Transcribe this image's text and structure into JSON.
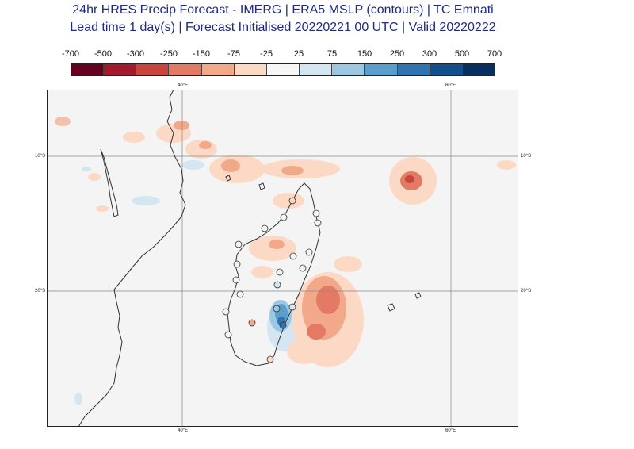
{
  "title": {
    "line1": "24hr HRES Precip Forecast - IMERG | ERA5 MSLP (contours) | TC Emnati",
    "line2": "Lead time 1 day(s) | Forecast Initialised 20220221 00 UTC | Valid 20220222"
  },
  "colorbar": {
    "labels": [
      "-700",
      "-500",
      "-300",
      "-250",
      "-150",
      "-75",
      "-25",
      "25",
      "75",
      "150",
      "250",
      "300",
      "500",
      "700"
    ],
    "colors": [
      "#67001f",
      "#a11b2d",
      "#c8453d",
      "#e27a64",
      "#f2a98a",
      "#fcd9c5",
      "#f7f7f7",
      "#d4e6f1",
      "#9bc7e1",
      "#5a9fcb",
      "#2f73b1",
      "#134f8d",
      "#053061"
    ]
  },
  "map": {
    "lon_ticks": [
      "40°E",
      "60°E"
    ],
    "lat_ticks": [
      "10°S",
      "20°S"
    ],
    "colors": {
      "ocean": "#f4f4f4",
      "coast": "#333333",
      "grid": "#888888"
    }
  }
}
